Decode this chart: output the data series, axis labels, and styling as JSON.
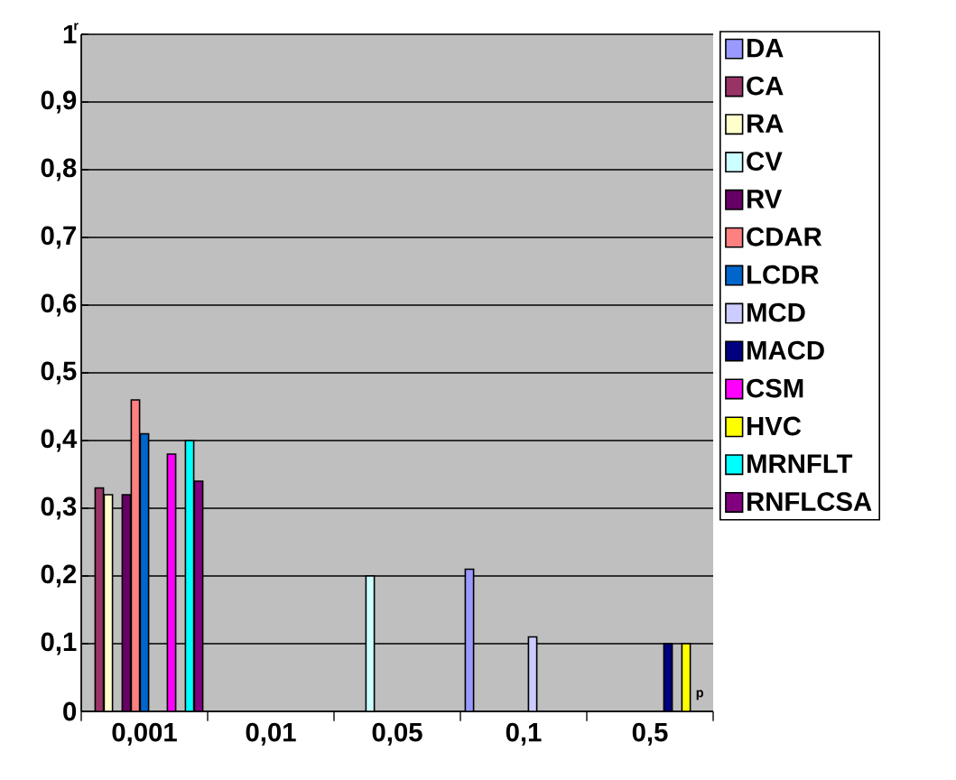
{
  "chart_data": {
    "type": "bar",
    "xlabel": "p",
    "ylabel": "r",
    "categories": [
      "0,001",
      "0,01",
      "0,05",
      "0,1",
      "0,5"
    ],
    "series": [
      {
        "name": "DA",
        "color": "#9999ff",
        "values": [
          null,
          null,
          null,
          0.21,
          null
        ]
      },
      {
        "name": "CA",
        "color": "#993366",
        "values": [
          0.33,
          null,
          null,
          null,
          null
        ]
      },
      {
        "name": "RA",
        "color": "#ffffcc",
        "values": [
          0.32,
          null,
          null,
          null,
          null
        ]
      },
      {
        "name": "CV",
        "color": "#ccffff",
        "values": [
          null,
          null,
          0.2,
          null,
          null
        ]
      },
      {
        "name": "RV",
        "color": "#660066",
        "values": [
          0.32,
          null,
          null,
          null,
          null
        ]
      },
      {
        "name": "CDAR",
        "color": "#ff8080",
        "values": [
          0.46,
          null,
          null,
          null,
          null
        ]
      },
      {
        "name": "LCDR",
        "color": "#0066cc",
        "values": [
          0.41,
          null,
          null,
          null,
          null
        ]
      },
      {
        "name": "MCD",
        "color": "#ccccff",
        "values": [
          null,
          null,
          null,
          0.11,
          null
        ]
      },
      {
        "name": "MACD",
        "color": "#000080",
        "values": [
          null,
          null,
          null,
          null,
          0.1
        ]
      },
      {
        "name": "CSM",
        "color": "#ff00ff",
        "values": [
          0.38,
          null,
          null,
          null,
          null
        ]
      },
      {
        "name": "HVC",
        "color": "#ffff00",
        "values": [
          null,
          null,
          null,
          null,
          0.1
        ]
      },
      {
        "name": "MRNFLT",
        "color": "#00ffff",
        "values": [
          0.4,
          null,
          null,
          null,
          null
        ]
      },
      {
        "name": "RNFLCSA",
        "color": "#800080",
        "values": [
          0.34,
          null,
          null,
          null,
          null
        ]
      }
    ],
    "ylim": [
      0,
      1
    ],
    "yticks": [
      0,
      {
        "value": 0.1,
        "label": "0,1"
      },
      {
        "value": 0.2,
        "label": "0,2"
      },
      {
        "value": 0.3,
        "label": "0,3"
      },
      {
        "value": 0.4,
        "label": "0,4"
      },
      {
        "value": 0.5,
        "label": "0,5"
      },
      {
        "value": 0.6,
        "label": "0,6"
      },
      {
        "value": 0.7,
        "label": "0,7"
      },
      {
        "value": 0.8,
        "label": "0,8"
      },
      {
        "value": 0.9,
        "label": "0,9"
      },
      1
    ],
    "grid": "y",
    "legend": "right"
  }
}
